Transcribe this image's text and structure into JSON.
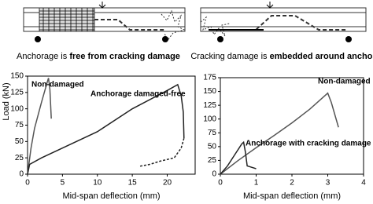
{
  "captions": [
    {
      "plain": "Anchorage is ",
      "bold": "free from cracking damage"
    },
    {
      "plain": "Cracking damage is ",
      "bold": "embedded around anchor"
    }
  ],
  "chart_data": [
    {
      "type": "line",
      "ylabel": "Load (kN)",
      "xlabel": "Mid-span deflection (mm)",
      "xlim": [
        0,
        24
      ],
      "ylim": [
        0,
        150
      ],
      "xticks": [
        0,
        5,
        10,
        15,
        20
      ],
      "yticks": [
        0,
        25,
        50,
        75,
        100,
        125,
        150
      ],
      "series": [
        {
          "name": "Non-damaged",
          "color": "#555555",
          "x": [
            0,
            0.5,
            1,
            2,
            2.8,
            3,
            3.2,
            3.4
          ],
          "values": [
            0,
            40,
            70,
            110,
            140,
            147,
            130,
            85
          ]
        },
        {
          "name": "Anchorage damaged-free",
          "color": "#222222",
          "x": [
            0,
            0.3,
            2,
            5,
            10,
            15,
            20,
            21.5,
            22,
            22.3,
            22.4
          ],
          "values": [
            0,
            15,
            25,
            40,
            65,
            100,
            128,
            137,
            120,
            95,
            55
          ]
        },
        {
          "color": "#222222",
          "dashed": true,
          "x": [
            22.4,
            22,
            21,
            19,
            17.5,
            16
          ],
          "values": [
            55,
            40,
            25,
            20,
            15,
            12
          ]
        }
      ]
    },
    {
      "type": "line",
      "xlabel": "Mid-span deflection (mm)",
      "xlim": [
        0,
        4
      ],
      "ylim": [
        0,
        175
      ],
      "xticks": [
        0,
        1,
        2,
        3,
        4
      ],
      "yticks": [
        0,
        25,
        50,
        75,
        100,
        125,
        150,
        175
      ],
      "series": [
        {
          "name": "Non-damaged",
          "color": "#555555",
          "x": [
            0,
            0.5,
            1,
            1.5,
            2,
            2.5,
            3,
            3.1,
            3.3
          ],
          "values": [
            0,
            25,
            48,
            70,
            93,
            118,
            147,
            130,
            85
          ]
        },
        {
          "name": "Anchorage with cracking damage",
          "color": "#222222",
          "x": [
            0,
            0.2,
            0.4,
            0.6,
            0.65,
            0.7,
            0.75,
            0.9,
            1
          ],
          "values": [
            0,
            15,
            35,
            55,
            58,
            40,
            15,
            12,
            10
          ]
        }
      ]
    }
  ]
}
